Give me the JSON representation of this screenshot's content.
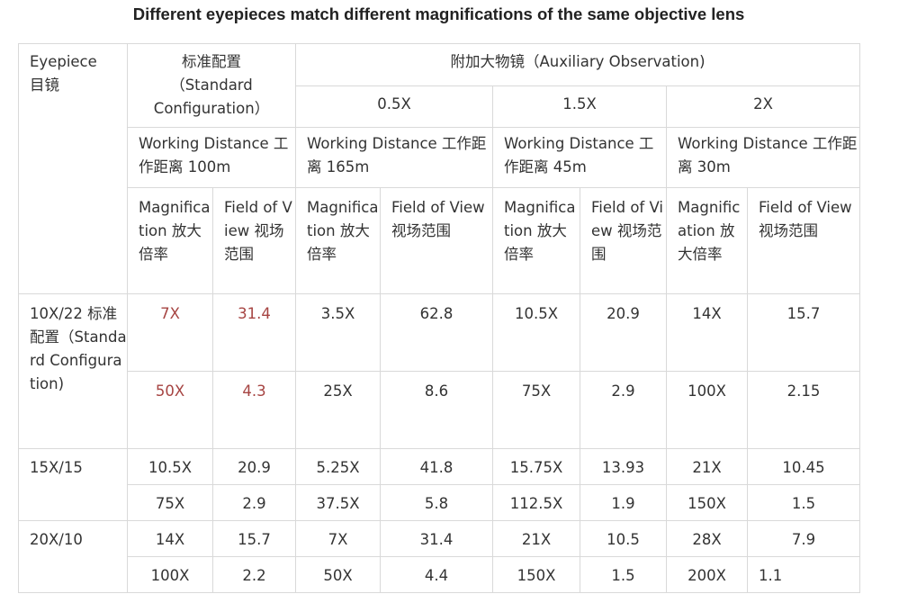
{
  "title": "Different eyepieces match different magnifications of the same objective lens",
  "header": {
    "eyepiece_en": "Eyepiece",
    "eyepiece_cn": "目镜",
    "standard_cn": "标准配置",
    "standard_en_1": "（Standard",
    "standard_en_2": "Configuration）",
    "auxiliary": "附加大物镜（Auxiliary Observation)",
    "aux_options": [
      "0.5X",
      "1.5X",
      "2X"
    ],
    "working_distance": [
      "Working Distance 工作距离 100m",
      "Working Distance 工作距离 165m",
      "Working Distance 工作距离 45m",
      "Working Distance 工作距离 30m"
    ],
    "magnification_label": "Magnification 放大倍率",
    "field_of_view_label": "Field of View 视场范围"
  },
  "eyepiece_labels": [
    "10X/22 标准配置（Standard Configuration)",
    "15X/15",
    "20X/10"
  ],
  "rows": [
    [
      "7X",
      "31.4",
      "3.5X",
      "62.8",
      "10.5X",
      "20.9",
      "14X",
      "15.7"
    ],
    [
      "50X",
      "4.3",
      "25X",
      "8.6",
      "75X",
      "2.9",
      "100X",
      "2.15"
    ],
    [
      "10.5X",
      "20.9",
      "5.25X",
      "41.8",
      "15.75X",
      "13.93",
      "21X",
      "10.45"
    ],
    [
      "75X",
      "2.9",
      "37.5X",
      "5.8",
      "112.5X",
      "1.9",
      "150X",
      "1.5"
    ],
    [
      "14X",
      "15.7",
      "7X",
      "31.4",
      "21X",
      "10.5",
      "28X",
      "7.9"
    ],
    [
      "100X",
      "2.2",
      "50X",
      "4.4",
      "150X",
      "1.5",
      "200X",
      "1.1"
    ]
  ],
  "colors": {
    "highlight_red": "#a64442",
    "border": "#d9d9d9",
    "text": "#333333"
  }
}
